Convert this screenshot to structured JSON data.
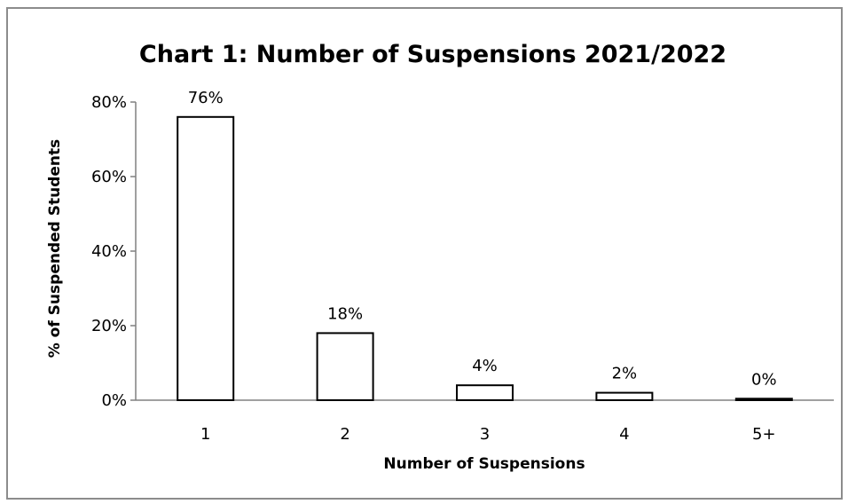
{
  "chart_data": {
    "type": "bar",
    "title": "Chart 1: Number of Suspensions 2021/2022",
    "xlabel": "Number of Suspensions",
    "ylabel": "% of Suspended Students",
    "categories": [
      "1",
      "2",
      "3",
      "4",
      "5+"
    ],
    "values": [
      76,
      18,
      4,
      2,
      0.4
    ],
    "data_labels": [
      "76%",
      "18%",
      "4%",
      "2%",
      "0%"
    ],
    "ylim": [
      0,
      80
    ],
    "yticks": [
      0,
      20,
      40,
      60,
      80
    ],
    "ytick_labels": [
      "0%",
      "20%",
      "40%",
      "60%",
      "80%"
    ],
    "grid": false,
    "legend": "none",
    "colors": {
      "bar_fill": "#ffffff",
      "bar_stroke": "#000000",
      "axis": "#808080",
      "frame": "#8c8c8c"
    }
  }
}
